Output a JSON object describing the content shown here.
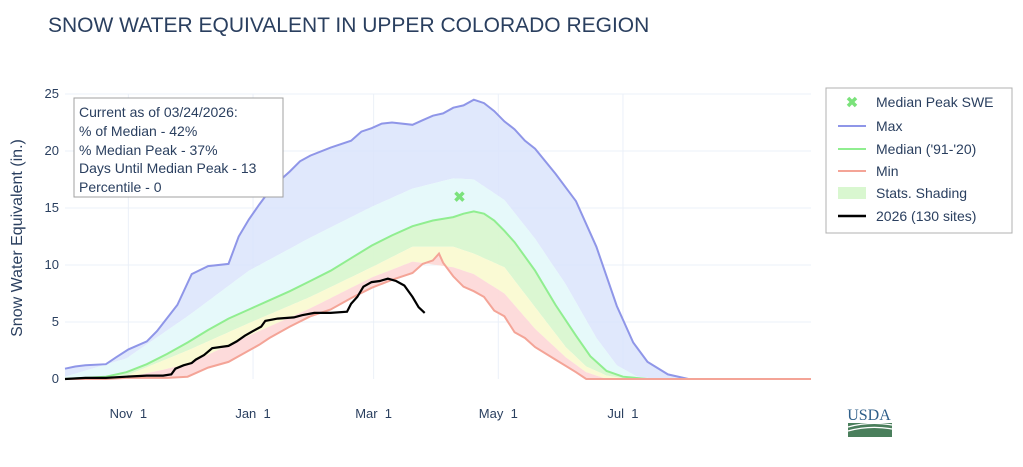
{
  "colors": {
    "max": "#8f96e8",
    "median": "#90ee90",
    "min": "#f4a497",
    "current": "#000000",
    "peak_marker": "#7be27b",
    "band_outer": "#dbe4fb",
    "band_mid": "#e5f9fa",
    "band_median": "#d9f7d0",
    "band_low": "#fafad2",
    "band_min": "#fdd9d9",
    "usda_blue": "#2f5f8a",
    "usda_green": "#4a7f5c"
  },
  "chart_data": {
    "type": "area",
    "title": "SNOW WATER EQUIVALENT IN UPPER COLORADO REGION",
    "xlabel": "",
    "ylabel": "Snow Water Equivalent (in.)",
    "x_unit": "days since Oct 1",
    "xlim": [
      0,
      365
    ],
    "ylim": [
      0,
      25
    ],
    "y_ticks": [
      0,
      5,
      10,
      15,
      20,
      25
    ],
    "x_ticks": [
      {
        "label": "Nov  1",
        "day": 31
      },
      {
        "label": "Jan  1",
        "day": 92
      },
      {
        "label": "Mar  1",
        "day": 151
      },
      {
        "label": "May  1",
        "day": 212
      },
      {
        "label": "Jul  1",
        "day": 273
      }
    ],
    "series": [
      {
        "name": "Max",
        "points": [
          [
            0,
            0.9
          ],
          [
            5,
            1.1
          ],
          [
            10,
            1.2
          ],
          [
            20,
            1.3
          ],
          [
            25,
            1.9
          ],
          [
            31,
            2.6
          ],
          [
            40,
            3.3
          ],
          [
            45,
            4.2
          ],
          [
            55,
            6.5
          ],
          [
            62,
            9.2
          ],
          [
            70,
            9.9
          ],
          [
            80,
            10.1
          ],
          [
            85,
            12.5
          ],
          [
            90,
            14.0
          ],
          [
            95,
            15.3
          ],
          [
            100,
            16.5
          ],
          [
            105,
            17.4
          ],
          [
            110,
            18.2
          ],
          [
            115,
            19.1
          ],
          [
            120,
            19.6
          ],
          [
            130,
            20.3
          ],
          [
            140,
            20.9
          ],
          [
            145,
            21.7
          ],
          [
            150,
            22.0
          ],
          [
            155,
            22.4
          ],
          [
            160,
            22.5
          ],
          [
            170,
            22.3
          ],
          [
            175,
            22.7
          ],
          [
            180,
            23.1
          ],
          [
            185,
            23.3
          ],
          [
            190,
            23.8
          ],
          [
            195,
            24.0
          ],
          [
            200,
            24.5
          ],
          [
            205,
            24.2
          ],
          [
            210,
            23.5
          ],
          [
            215,
            22.6
          ],
          [
            220,
            21.9
          ],
          [
            225,
            20.9
          ],
          [
            230,
            20.2
          ],
          [
            240,
            18.0
          ],
          [
            250,
            15.6
          ],
          [
            260,
            11.6
          ],
          [
            270,
            6.4
          ],
          [
            278,
            3.2
          ],
          [
            285,
            1.5
          ],
          [
            295,
            0.4
          ],
          [
            305,
            0.0
          ],
          [
            365,
            0.0
          ]
        ]
      },
      {
        "name": "Median ('91-'20)",
        "points": [
          [
            0,
            0.0
          ],
          [
            10,
            0.1
          ],
          [
            20,
            0.2
          ],
          [
            30,
            0.6
          ],
          [
            40,
            1.3
          ],
          [
            50,
            2.2
          ],
          [
            60,
            3.2
          ],
          [
            70,
            4.3
          ],
          [
            80,
            5.3
          ],
          [
            90,
            6.1
          ],
          [
            100,
            6.9
          ],
          [
            110,
            7.7
          ],
          [
            120,
            8.6
          ],
          [
            130,
            9.5
          ],
          [
            140,
            10.6
          ],
          [
            150,
            11.7
          ],
          [
            160,
            12.6
          ],
          [
            170,
            13.4
          ],
          [
            180,
            13.9
          ],
          [
            190,
            14.2
          ],
          [
            195,
            14.5
          ],
          [
            200,
            14.7
          ],
          [
            205,
            14.5
          ],
          [
            210,
            13.9
          ],
          [
            215,
            13.0
          ],
          [
            220,
            12.0
          ],
          [
            230,
            9.5
          ],
          [
            240,
            6.5
          ],
          [
            250,
            3.8
          ],
          [
            257,
            2.0
          ],
          [
            265,
            0.7
          ],
          [
            273,
            0.2
          ],
          [
            285,
            0.0
          ],
          [
            365,
            0.0
          ]
        ]
      },
      {
        "name": "Min",
        "points": [
          [
            0,
            0.0
          ],
          [
            20,
            0.0
          ],
          [
            30,
            0.1
          ],
          [
            40,
            0.1
          ],
          [
            50,
            0.1
          ],
          [
            60,
            0.2
          ],
          [
            70,
            1.0
          ],
          [
            80,
            1.5
          ],
          [
            90,
            2.5
          ],
          [
            95,
            3.0
          ],
          [
            100,
            3.6
          ],
          [
            110,
            4.6
          ],
          [
            120,
            5.5
          ],
          [
            130,
            6.1
          ],
          [
            140,
            7.1
          ],
          [
            150,
            8.0
          ],
          [
            160,
            8.7
          ],
          [
            170,
            9.3
          ],
          [
            175,
            10.1
          ],
          [
            180,
            10.4
          ],
          [
            183,
            11.0
          ],
          [
            185,
            10.2
          ],
          [
            190,
            9.0
          ],
          [
            195,
            8.1
          ],
          [
            200,
            7.7
          ],
          [
            205,
            7.2
          ],
          [
            210,
            6.0
          ],
          [
            215,
            5.5
          ],
          [
            220,
            4.1
          ],
          [
            225,
            3.6
          ],
          [
            230,
            2.8
          ],
          [
            240,
            1.7
          ],
          [
            250,
            0.6
          ],
          [
            255,
            0.0
          ],
          [
            365,
            0.0
          ]
        ]
      },
      {
        "name": "2026 (130 sites)",
        "points": [
          [
            0,
            0.0
          ],
          [
            10,
            0.1
          ],
          [
            20,
            0.1
          ],
          [
            30,
            0.2
          ],
          [
            40,
            0.3
          ],
          [
            48,
            0.3
          ],
          [
            52,
            0.4
          ],
          [
            54,
            0.9
          ],
          [
            58,
            1.2
          ],
          [
            62,
            1.4
          ],
          [
            64,
            1.7
          ],
          [
            68,
            2.1
          ],
          [
            72,
            2.7
          ],
          [
            80,
            2.9
          ],
          [
            84,
            3.3
          ],
          [
            88,
            3.8
          ],
          [
            92,
            4.2
          ],
          [
            96,
            4.6
          ],
          [
            98,
            5.1
          ],
          [
            104,
            5.3
          ],
          [
            112,
            5.4
          ],
          [
            116,
            5.6
          ],
          [
            122,
            5.8
          ],
          [
            130,
            5.8
          ],
          [
            138,
            5.9
          ],
          [
            140,
            6.6
          ],
          [
            143,
            7.2
          ],
          [
            146,
            8.1
          ],
          [
            150,
            8.5
          ],
          [
            154,
            8.6
          ],
          [
            158,
            8.8
          ],
          [
            162,
            8.6
          ],
          [
            166,
            8.2
          ],
          [
            170,
            7.2
          ],
          [
            173,
            6.3
          ],
          [
            176,
            5.8
          ]
        ]
      }
    ],
    "shading_bands": [
      {
        "name": "outer-upper",
        "points_upper": "Max",
        "points_lower": "p70"
      },
      {
        "name": "p70",
        "points": [
          [
            0,
            0.2
          ],
          [
            30,
            1.8
          ],
          [
            60,
            5.5
          ],
          [
            90,
            9.5
          ],
          [
            120,
            12.4
          ],
          [
            150,
            15.1
          ],
          [
            170,
            16.7
          ],
          [
            190,
            17.6
          ],
          [
            200,
            17.5
          ],
          [
            215,
            15.7
          ],
          [
            230,
            12.3
          ],
          [
            245,
            8.3
          ],
          [
            260,
            3.6
          ],
          [
            270,
            1.2
          ],
          [
            280,
            0.2
          ],
          [
            290,
            0.0
          ],
          [
            365,
            0.0
          ]
        ]
      },
      {
        "name": "p30",
        "points": [
          [
            0,
            0.0
          ],
          [
            30,
            0.3
          ],
          [
            60,
            2.5
          ],
          [
            90,
            4.9
          ],
          [
            120,
            7.2
          ],
          [
            150,
            9.8
          ],
          [
            170,
            11.6
          ],
          [
            190,
            11.6
          ],
          [
            200,
            11.0
          ],
          [
            215,
            9.8
          ],
          [
            230,
            6.3
          ],
          [
            245,
            2.8
          ],
          [
            255,
            1.1
          ],
          [
            265,
            0.3
          ],
          [
            275,
            0.0
          ],
          [
            365,
            0.0
          ]
        ]
      },
      {
        "name": "p10",
        "points": [
          [
            0,
            0.0
          ],
          [
            30,
            0.1
          ],
          [
            60,
            1.3
          ],
          [
            90,
            3.8
          ],
          [
            120,
            6.2
          ],
          [
            150,
            8.9
          ],
          [
            170,
            10.3
          ],
          [
            190,
            9.8
          ],
          [
            200,
            9.2
          ],
          [
            215,
            7.5
          ],
          [
            230,
            4.4
          ],
          [
            245,
            1.9
          ],
          [
            255,
            0.6
          ],
          [
            265,
            0.0
          ],
          [
            365,
            0.0
          ]
        ]
      }
    ],
    "markers": [
      {
        "name": "Median Peak SWE",
        "x": 193,
        "y": 16.0,
        "symbol": "x"
      }
    ],
    "legend_position": "right",
    "legend": [
      {
        "label": "Median Peak SWE",
        "kind": "marker"
      },
      {
        "label": "Max",
        "kind": "line"
      },
      {
        "label": "Median ('91-'20)",
        "kind": "line"
      },
      {
        "label": "Min",
        "kind": "line"
      },
      {
        "label": "Stats. Shading",
        "kind": "fill"
      },
      {
        "label": "2026 (130 sites)",
        "kind": "line"
      }
    ],
    "annotation_lines": [
      "Current as of 03/24/2026:",
      "% of Median - 42%",
      "% Median Peak - 37%",
      "Days Until Median Peak - 13",
      "Percentile - 0"
    ]
  },
  "logo": {
    "text": "USDA"
  }
}
